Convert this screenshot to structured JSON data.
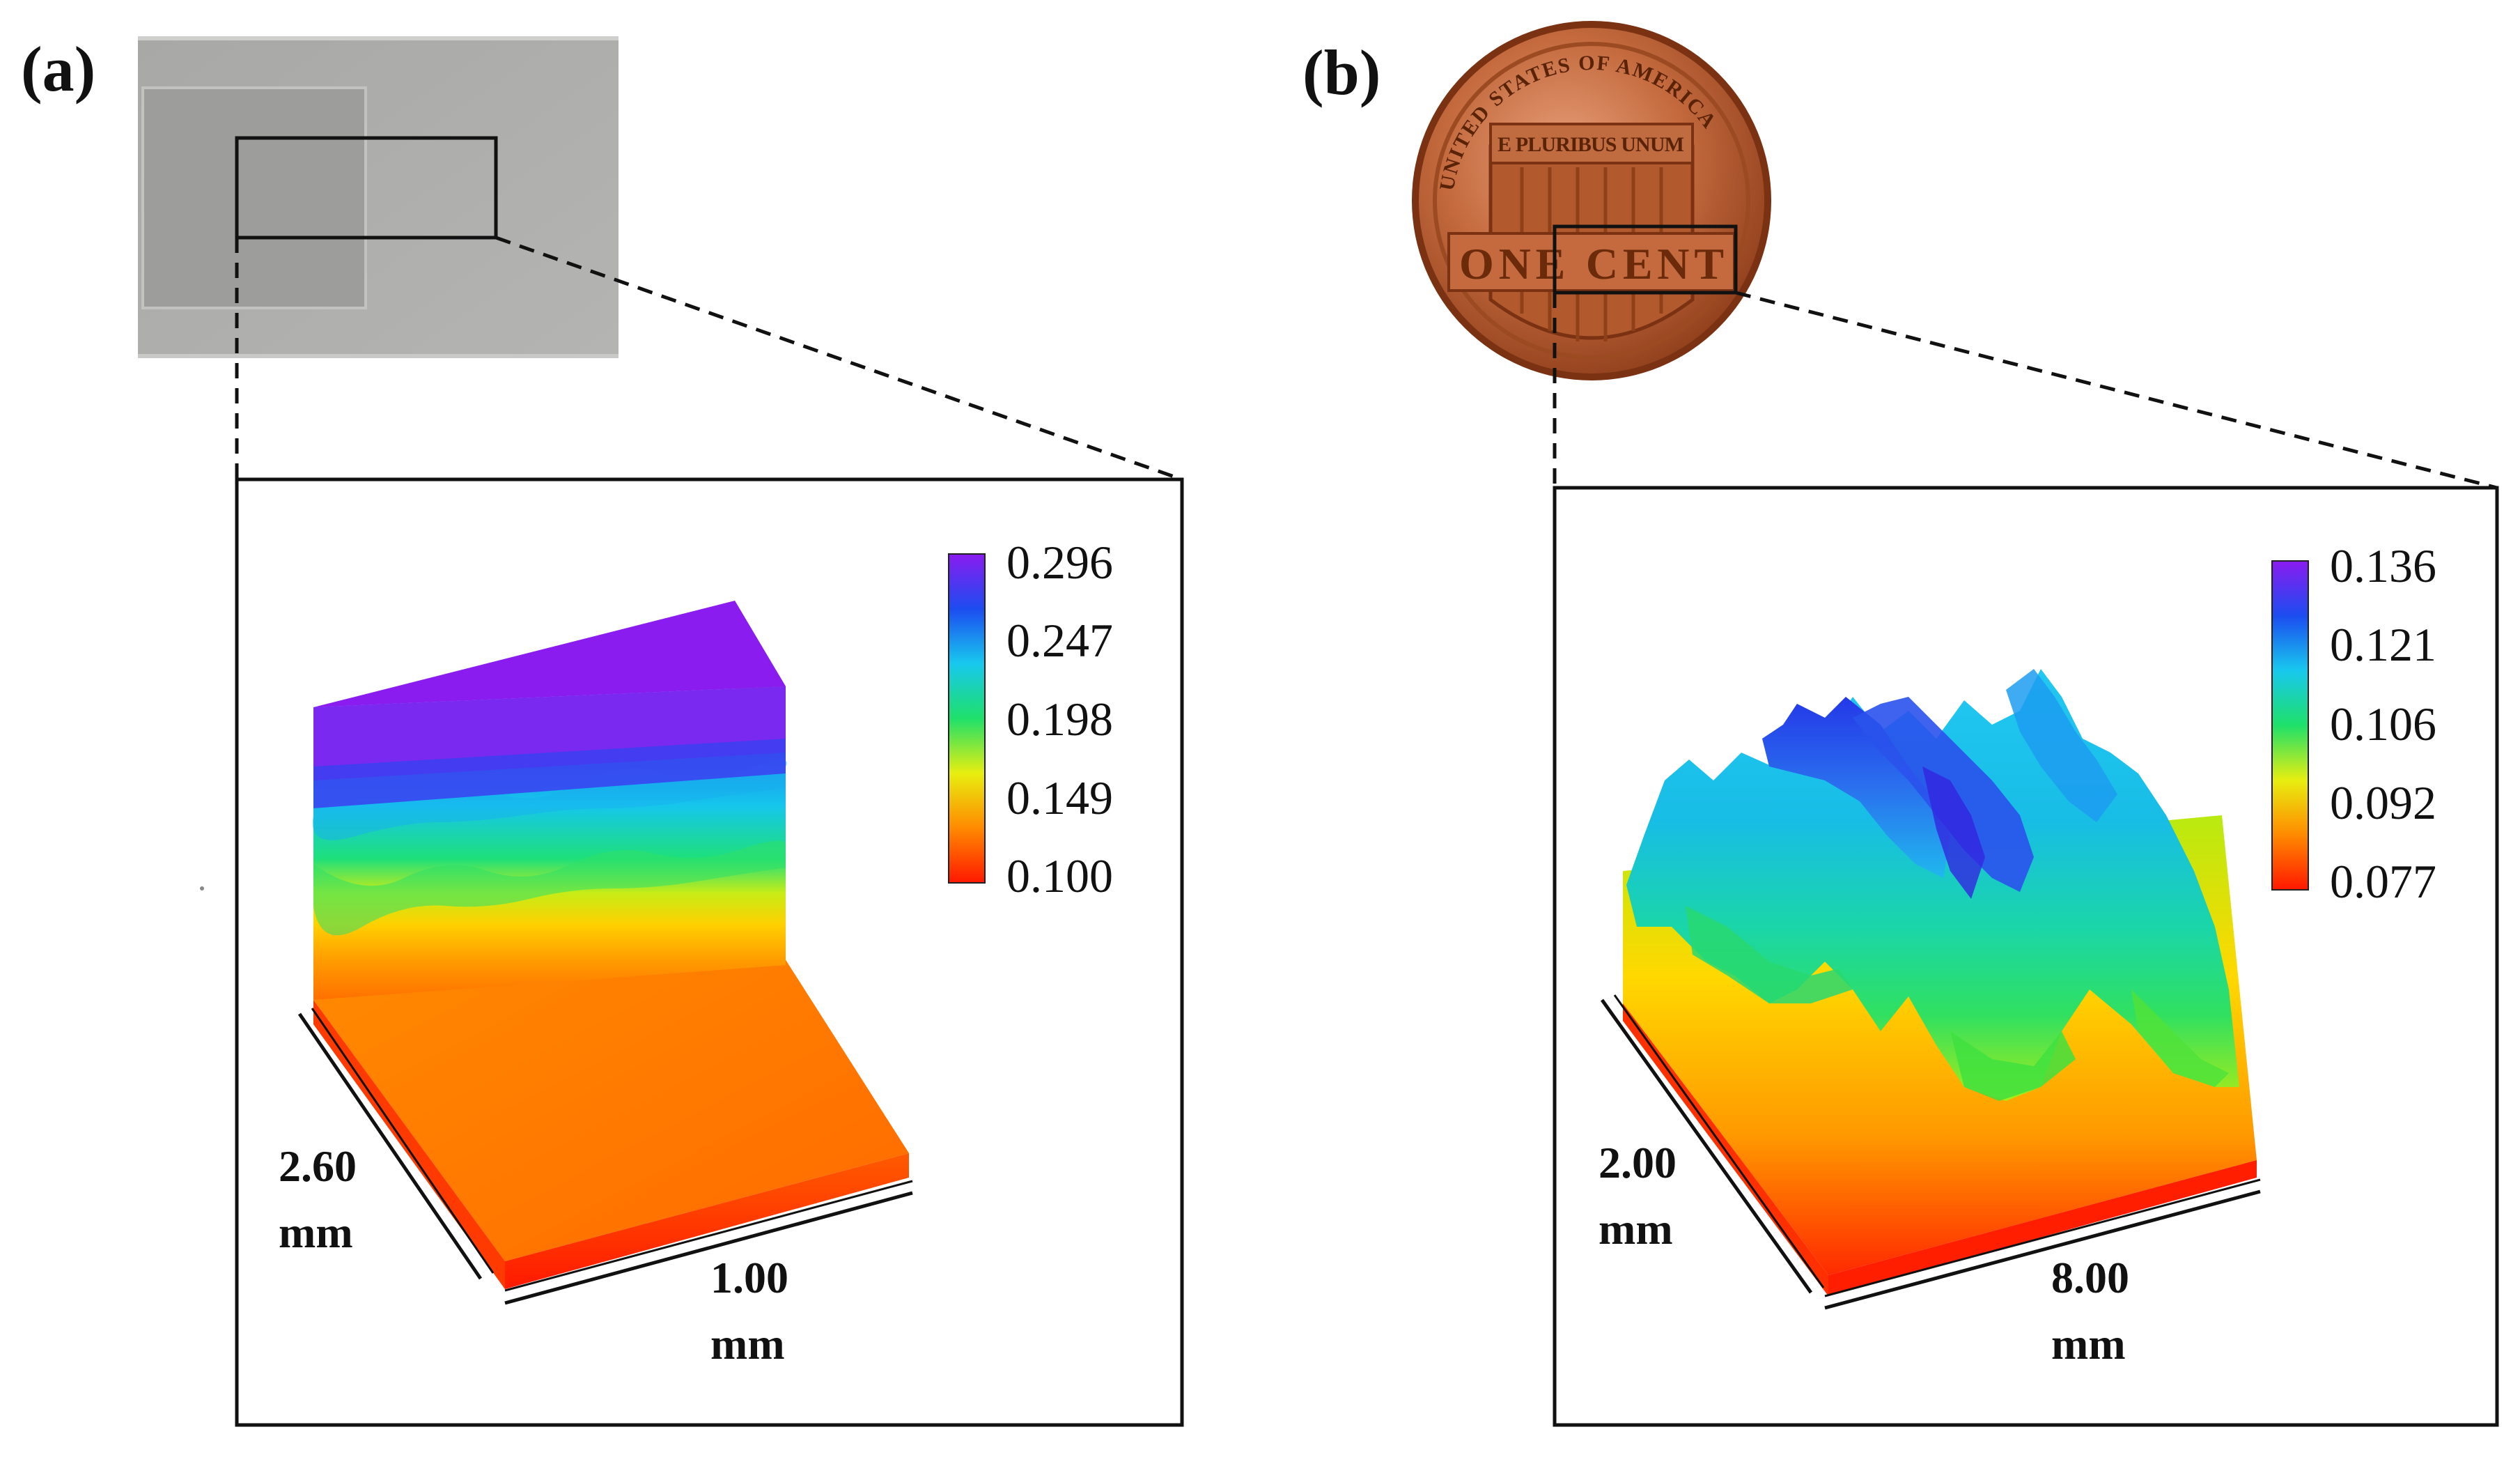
{
  "figure": {
    "panel_a": {
      "label": "(a)",
      "colorbar": {
        "ticks": [
          "0.296",
          "0.247",
          "0.198",
          "0.149",
          "0.100"
        ],
        "colors": [
          "#8a1cf0",
          "#1c4cf0",
          "#18c8ee",
          "#1ee06a",
          "#e8ee10",
          "#ff8a00",
          "#ff1800"
        ]
      },
      "axis_depth": {
        "value": "2.60",
        "unit": "mm"
      },
      "axis_width": {
        "value": "1.00",
        "unit": "mm"
      }
    },
    "panel_b": {
      "label": "(b)",
      "colorbar": {
        "ticks": [
          "0.136",
          "0.121",
          "0.106",
          "0.092",
          "0.077"
        ],
        "colors": [
          "#8a1cf0",
          "#1c4cf0",
          "#18c8ee",
          "#1ee06a",
          "#e8ee10",
          "#ff8a00",
          "#ff1800"
        ]
      },
      "axis_depth": {
        "value": "2.00",
        "unit": "mm"
      },
      "axis_width": {
        "value": "8.00",
        "unit": "mm"
      },
      "coin": {
        "rim_text": "UNITED STATES OF AMERICA",
        "motto": "E PLURIBUS UNUM",
        "denomination": "ONE CENT"
      }
    }
  }
}
